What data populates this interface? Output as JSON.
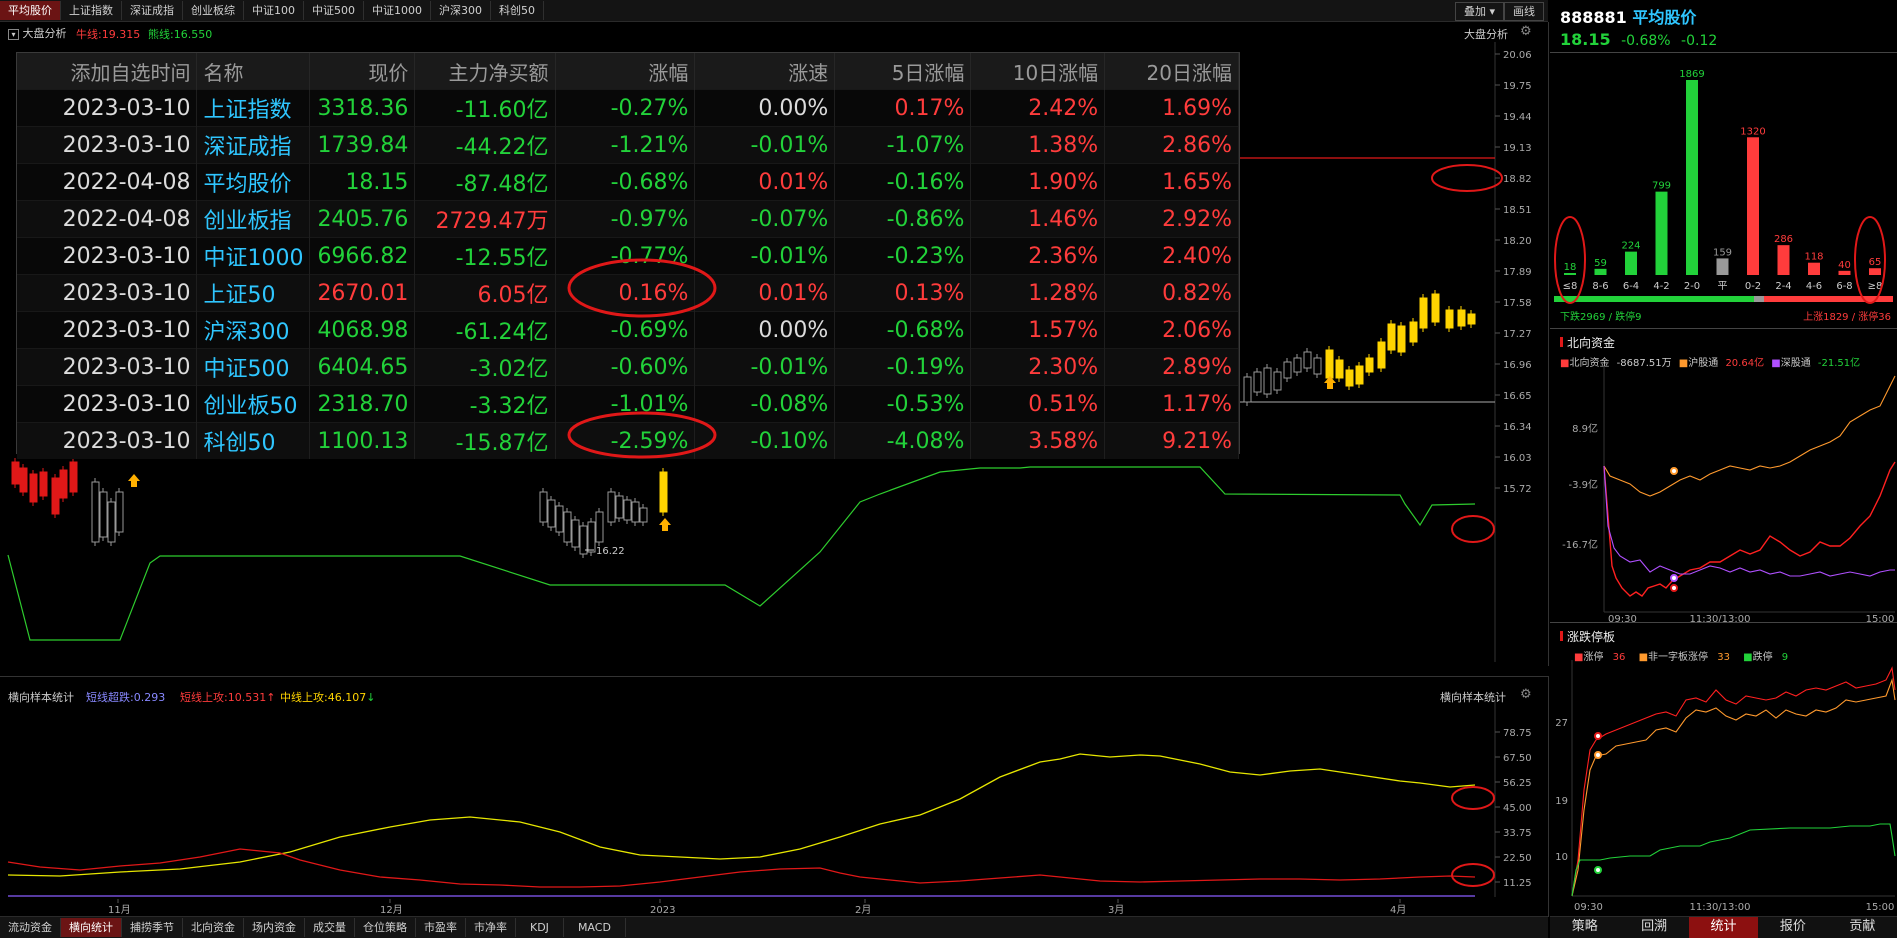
{
  "top_tabs": [
    "平均股价",
    "上证指数",
    "深证成指",
    "创业板综",
    "中证100",
    "中证500",
    "中证1000",
    "沪深300",
    "科创50"
  ],
  "top_right": {
    "overlay": "叠加",
    "draw": "画线"
  },
  "main": {
    "title": "大盘分析",
    "title_right": "大盘分析",
    "bull_line": "牛线:19.315",
    "bear_line": "熊线:16.550",
    "low_label": "16.22",
    "y_ticks": [
      "20.06",
      "19.75",
      "19.44",
      "19.13",
      "18.82",
      "18.51",
      "18.20",
      "17.89",
      "17.58",
      "17.27",
      "16.96",
      "16.65",
      "16.34",
      "16.03",
      "15.72"
    ]
  },
  "table": {
    "headers": [
      "添加自选时间",
      "名称",
      "现价",
      "主力净买额",
      "涨幅",
      "涨速",
      "5日涨幅",
      "10日涨幅",
      "20日涨幅"
    ],
    "rows": [
      {
        "date": "2023-03-10",
        "name": "上证指数",
        "price": "3318.36",
        "net": "-11.60亿",
        "chg": "-0.27%",
        "speed": "0.00%",
        "d5": "0.17%",
        "d10": "2.42%",
        "d20": "1.69%",
        "c": [
          "g",
          "g",
          "g",
          "w",
          "r",
          "r",
          "r"
        ]
      },
      {
        "date": "2023-03-10",
        "name": "深证成指",
        "price": "1739.84",
        "net": "-44.22亿",
        "chg": "-1.21%",
        "speed": "-0.01%",
        "d5": "-1.07%",
        "d10": "1.38%",
        "d20": "2.86%",
        "c": [
          "g",
          "g",
          "g",
          "g",
          "g",
          "r",
          "r"
        ]
      },
      {
        "date": "2022-04-08",
        "name": "平均股价",
        "price": "18.15",
        "net": "-87.48亿",
        "chg": "-0.68%",
        "speed": "0.01%",
        "d5": "-0.16%",
        "d10": "1.90%",
        "d20": "1.65%",
        "c": [
          "g",
          "g",
          "g",
          "r",
          "g",
          "r",
          "r"
        ]
      },
      {
        "date": "2022-04-08",
        "name": "创业板指",
        "price": "2405.76",
        "net": "2729.47万",
        "chg": "-0.97%",
        "speed": "-0.07%",
        "d5": "-0.86%",
        "d10": "1.46%",
        "d20": "2.92%",
        "c": [
          "g",
          "r",
          "g",
          "g",
          "g",
          "r",
          "r"
        ]
      },
      {
        "date": "2023-03-10",
        "name": "中证1000",
        "price": "6966.82",
        "net": "-12.55亿",
        "chg": "-0.77%",
        "speed": "-0.01%",
        "d5": "-0.23%",
        "d10": "2.36%",
        "d20": "2.40%",
        "c": [
          "g",
          "g",
          "g",
          "g",
          "g",
          "r",
          "r"
        ]
      },
      {
        "date": "2023-03-10",
        "name": "上证50",
        "price": "2670.01",
        "net": "6.05亿",
        "chg": "0.16%",
        "speed": "0.01%",
        "d5": "0.13%",
        "d10": "1.28%",
        "d20": "0.82%",
        "c": [
          "r",
          "r",
          "r",
          "r",
          "r",
          "r",
          "r"
        ]
      },
      {
        "date": "2023-03-10",
        "name": "沪深300",
        "price": "4068.98",
        "net": "-61.24亿",
        "chg": "-0.69%",
        "speed": "0.00%",
        "d5": "-0.68%",
        "d10": "1.57%",
        "d20": "2.06%",
        "c": [
          "g",
          "g",
          "g",
          "w",
          "g",
          "r",
          "r"
        ]
      },
      {
        "date": "2023-03-10",
        "name": "中证500",
        "price": "6404.65",
        "net": "-3.02亿",
        "chg": "-0.60%",
        "speed": "-0.01%",
        "d5": "-0.19%",
        "d10": "2.30%",
        "d20": "2.89%",
        "c": [
          "g",
          "g",
          "g",
          "g",
          "g",
          "r",
          "r"
        ]
      },
      {
        "date": "2023-03-10",
        "name": "创业板50",
        "price": "2318.70",
        "net": "-3.32亿",
        "chg": "-1.01%",
        "speed": "-0.08%",
        "d5": "-0.53%",
        "d10": "0.51%",
        "d20": "1.17%",
        "c": [
          "g",
          "g",
          "g",
          "g",
          "g",
          "r",
          "r"
        ]
      },
      {
        "date": "2023-03-10",
        "name": "科创50",
        "price": "1100.13",
        "net": "-15.87亿",
        "chg": "-2.59%",
        "speed": "-0.10%",
        "d5": "-4.08%",
        "d10": "3.58%",
        "d20": "9.21%",
        "c": [
          "g",
          "g",
          "g",
          "g",
          "g",
          "r",
          "r"
        ]
      }
    ]
  },
  "sub": {
    "title": "横向样本统计",
    "title_right": "横向样本统计",
    "l1": "短线超跌:0.293",
    "l2": "短线上攻:10.531",
    "l3": "中线上攻:46.107",
    "y_ticks": [
      "78.75",
      "67.50",
      "56.25",
      "45.00",
      "33.75",
      "22.50",
      "11.25"
    ],
    "x_ticks": [
      "11月",
      "12月",
      "2023",
      "2月",
      "3月",
      "4月"
    ]
  },
  "bottom_tabs": [
    "流动资金",
    "横向统计",
    "捕捞季节",
    "北向资金",
    "场内资金",
    "成交量",
    "仓位策略",
    "市盈率",
    "市净率",
    "KDJ",
    "MACD"
  ],
  "right": {
    "code": "888881",
    "name": "平均股价",
    "price": "18.15",
    "pct": "-0.68%",
    "chg": "-0.12",
    "dist": {
      "categories": [
        "≤8",
        "8-6",
        "6-4",
        "4-2",
        "2-0",
        "平",
        "0-2",
        "2-4",
        "4-6",
        "6-8",
        "≥8"
      ],
      "values": [
        18,
        59,
        224,
        799,
        1869,
        159,
        1320,
        286,
        118,
        40,
        65
      ],
      "down": "下跌2969 / 跌停9",
      "up": "上涨1829 / 涨停36"
    },
    "north": {
      "title": "北向资金",
      "l1": "北向资金",
      "v1": "-8687.51万",
      "l2": "沪股通",
      "v2": "20.64亿",
      "l3": "深股通",
      "v3": "-21.51亿",
      "y_ticks": [
        "8.9亿",
        "-3.9亿",
        "-16.7亿"
      ],
      "x_ticks": [
        "09:30",
        "11:30/13:00",
        "15:00"
      ]
    },
    "limit": {
      "title": "涨跌停板",
      "l1": "涨停",
      "v1": "36",
      "l2": "非一字板涨停",
      "v2": "33",
      "l3": "跌停",
      "v3": "9",
      "y_ticks": [
        "27",
        "19",
        "10"
      ],
      "x_ticks": [
        "09:30",
        "11:30/13:00",
        "15:00"
      ]
    },
    "bottom_tabs": [
      "策略",
      "回溯",
      "统计",
      "报价",
      "贡献"
    ]
  },
  "colors": {
    "up": "#ff3c3c",
    "down": "#22d23a",
    "accent": "#2fc6ff",
    "yellow": "#ffd400"
  }
}
